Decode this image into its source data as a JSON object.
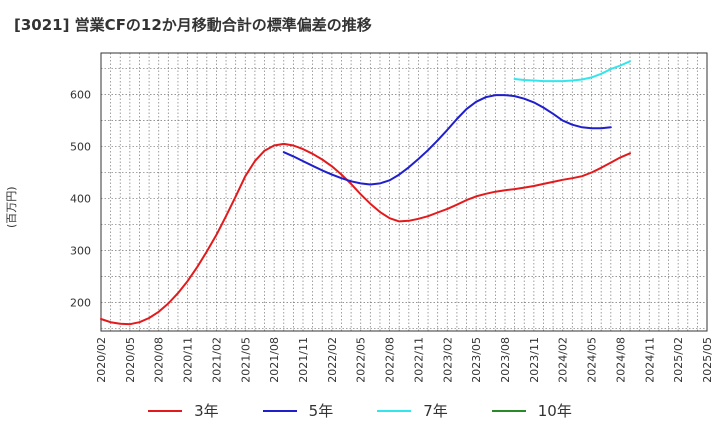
{
  "title": "[3021]  営業CFの12か月移動合計の標準偏差の推移",
  "ylabel": "(百万円)",
  "chart_data": {
    "type": "line",
    "ylim": [
      145,
      680
    ],
    "yticks": [
      200,
      300,
      400,
      500,
      600
    ],
    "x_ticks": [
      "2020/02",
      "2020/05",
      "2020/08",
      "2020/11",
      "2021/02",
      "2021/05",
      "2021/08",
      "2021/11",
      "2022/02",
      "2022/05",
      "2022/08",
      "2022/11",
      "2023/02",
      "2023/05",
      "2023/08",
      "2023/11",
      "2024/02",
      "2024/05",
      "2024/08",
      "2024/11",
      "2025/02",
      "2025/05"
    ],
    "x_start": "2020/02",
    "x_end": "2025/05",
    "grid": true,
    "legend_position": "bottom",
    "series": [
      {
        "name": "3年",
        "color": "#e31a1c",
        "points": [
          [
            "2020/02",
            168
          ],
          [
            "2020/03",
            162
          ],
          [
            "2020/04",
            159
          ],
          [
            "2020/05",
            158
          ],
          [
            "2020/06",
            162
          ],
          [
            "2020/07",
            170
          ],
          [
            "2020/08",
            182
          ],
          [
            "2020/09",
            198
          ],
          [
            "2020/10",
            218
          ],
          [
            "2020/11",
            241
          ],
          [
            "2020/12",
            268
          ],
          [
            "2021/01",
            298
          ],
          [
            "2021/02",
            330
          ],
          [
            "2021/03",
            366
          ],
          [
            "2021/04",
            404
          ],
          [
            "2021/05",
            443
          ],
          [
            "2021/06",
            472
          ],
          [
            "2021/07",
            492
          ],
          [
            "2021/08",
            502
          ],
          [
            "2021/09",
            505
          ],
          [
            "2021/10",
            502
          ],
          [
            "2021/11",
            495
          ],
          [
            "2021/12",
            486
          ],
          [
            "2022/01",
            475
          ],
          [
            "2022/02",
            462
          ],
          [
            "2022/03",
            446
          ],
          [
            "2022/04",
            428
          ],
          [
            "2022/05",
            408
          ],
          [
            "2022/06",
            390
          ],
          [
            "2022/07",
            374
          ],
          [
            "2022/08",
            362
          ],
          [
            "2022/09",
            356
          ],
          [
            "2022/10",
            357
          ],
          [
            "2022/11",
            361
          ],
          [
            "2022/12",
            366
          ],
          [
            "2023/01",
            373
          ],
          [
            "2023/02",
            380
          ],
          [
            "2023/03",
            388
          ],
          [
            "2023/04",
            397
          ],
          [
            "2023/05",
            404
          ],
          [
            "2023/06",
            409
          ],
          [
            "2023/07",
            413
          ],
          [
            "2023/08",
            416
          ],
          [
            "2023/09",
            418
          ],
          [
            "2023/10",
            421
          ],
          [
            "2023/11",
            424
          ],
          [
            "2023/12",
            428
          ],
          [
            "2024/01",
            432
          ],
          [
            "2024/02",
            436
          ],
          [
            "2024/03",
            439
          ],
          [
            "2024/04",
            443
          ],
          [
            "2024/05",
            450
          ],
          [
            "2024/06",
            459
          ],
          [
            "2024/07",
            469
          ],
          [
            "2024/08",
            479
          ],
          [
            "2024/09",
            487
          ]
        ]
      },
      {
        "name": "5年",
        "color": "#1f1fcc",
        "points": [
          [
            "2021/09",
            489
          ],
          [
            "2021/10",
            481
          ],
          [
            "2021/11",
            472
          ],
          [
            "2021/12",
            463
          ],
          [
            "2022/01",
            454
          ],
          [
            "2022/02",
            446
          ],
          [
            "2022/03",
            439
          ],
          [
            "2022/04",
            433
          ],
          [
            "2022/05",
            429
          ],
          [
            "2022/06",
            427
          ],
          [
            "2022/07",
            429
          ],
          [
            "2022/08",
            435
          ],
          [
            "2022/09",
            446
          ],
          [
            "2022/10",
            460
          ],
          [
            "2022/11",
            476
          ],
          [
            "2022/12",
            493
          ],
          [
            "2023/01",
            512
          ],
          [
            "2023/02",
            532
          ],
          [
            "2023/03",
            553
          ],
          [
            "2023/04",
            572
          ],
          [
            "2023/05",
            586
          ],
          [
            "2023/06",
            595
          ],
          [
            "2023/07",
            599
          ],
          [
            "2023/08",
            599
          ],
          [
            "2023/09",
            597
          ],
          [
            "2023/10",
            592
          ],
          [
            "2023/11",
            585
          ],
          [
            "2023/12",
            575
          ],
          [
            "2024/01",
            563
          ],
          [
            "2024/02",
            550
          ],
          [
            "2024/03",
            542
          ],
          [
            "2024/04",
            537
          ],
          [
            "2024/05",
            535
          ],
          [
            "2024/06",
            535
          ],
          [
            "2024/07",
            537
          ]
        ]
      },
      {
        "name": "7年",
        "color": "#33e6ee",
        "points": [
          [
            "2023/09",
            630
          ],
          [
            "2023/10",
            628
          ],
          [
            "2023/11",
            627
          ],
          [
            "2023/12",
            626
          ],
          [
            "2024/01",
            626
          ],
          [
            "2024/02",
            626
          ],
          [
            "2024/03",
            627
          ],
          [
            "2024/04",
            629
          ],
          [
            "2024/05",
            633
          ],
          [
            "2024/06",
            640
          ],
          [
            "2024/07",
            649
          ],
          [
            "2024/08",
            656
          ],
          [
            "2024/09",
            664
          ]
        ]
      },
      {
        "name": "10年",
        "color": "#2a8a2a",
        "points": []
      }
    ]
  }
}
